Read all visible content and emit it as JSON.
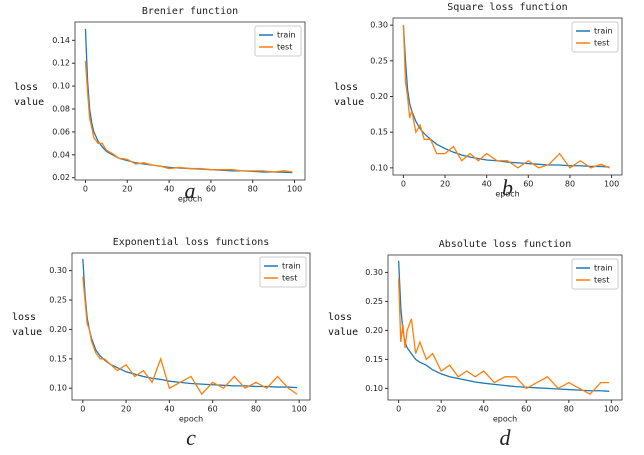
{
  "chart_data": [
    {
      "type": "line",
      "title": "Brenier function",
      "caption": "a",
      "xlabel": "epoch",
      "ylabel": "loss value",
      "x": [
        0,
        1,
        2,
        3,
        4,
        6,
        8,
        10,
        13,
        16,
        20,
        24,
        28,
        32,
        36,
        40,
        45,
        50,
        55,
        60,
        65,
        70,
        75,
        80,
        85,
        90,
        95,
        99
      ],
      "series": [
        {
          "name": "train",
          "color": "#1f77b4",
          "values": [
            0.15,
            0.105,
            0.08,
            0.068,
            0.06,
            0.052,
            0.047,
            0.043,
            0.04,
            0.037,
            0.035,
            0.033,
            0.032,
            0.031,
            0.03,
            0.029,
            0.0285,
            0.028,
            0.0275,
            0.027,
            0.0265,
            0.026,
            0.026,
            0.0255,
            0.025,
            0.025,
            0.0248,
            0.0245
          ]
        },
        {
          "name": "test",
          "color": "#ff7f0e",
          "values": [
            0.122,
            0.095,
            0.072,
            0.064,
            0.055,
            0.05,
            0.05,
            0.044,
            0.041,
            0.037,
            0.036,
            0.032,
            0.033,
            0.031,
            0.03,
            0.028,
            0.029,
            0.028,
            0.028,
            0.027,
            0.027,
            0.027,
            0.026,
            0.026,
            0.026,
            0.025,
            0.026,
            0.025
          ]
        }
      ],
      "xlim": [
        -5,
        105
      ],
      "xticks": [
        0,
        20,
        40,
        60,
        80,
        100
      ],
      "ylim": [
        0.018,
        0.156
      ],
      "yticks": [
        0.02,
        0.04,
        0.06,
        0.08,
        {
          "value": 0.1,
          "label": "0.10"
        },
        0.12,
        0.14
      ],
      "legend": "upper right"
    },
    {
      "type": "line",
      "title": "Square loss function",
      "caption": "b",
      "xlabel": "epoch",
      "ylabel": "loss value",
      "x": [
        0,
        1,
        2,
        3,
        4,
        6,
        8,
        10,
        13,
        16,
        20,
        24,
        28,
        32,
        36,
        40,
        45,
        50,
        55,
        60,
        65,
        70,
        75,
        80,
        85,
        90,
        95,
        99
      ],
      "series": [
        {
          "name": "train",
          "color": "#1f77b4",
          "values": [
            0.3,
            0.25,
            0.21,
            0.19,
            0.18,
            0.165,
            0.155,
            0.148,
            0.14,
            0.133,
            0.127,
            0.122,
            0.118,
            0.115,
            0.113,
            0.111,
            0.11,
            0.108,
            0.107,
            0.106,
            0.105,
            0.104,
            0.104,
            0.103,
            0.103,
            0.102,
            0.102,
            0.101
          ]
        },
        {
          "name": "test",
          "color": "#ff7f0e",
          "values": [
            0.3,
            0.22,
            0.2,
            0.17,
            0.18,
            0.15,
            0.16,
            0.14,
            0.14,
            0.12,
            0.12,
            0.13,
            0.11,
            0.12,
            0.11,
            0.12,
            0.11,
            0.11,
            0.1,
            0.11,
            0.1,
            0.105,
            0.12,
            0.1,
            0.11,
            0.1,
            0.105,
            0.1
          ]
        }
      ],
      "xlim": [
        -5,
        105
      ],
      "xticks": [
        0,
        20,
        40,
        60,
        80,
        100
      ],
      "ylim": [
        0.09,
        0.31
      ],
      "yticks": [
        {
          "value": 0.1,
          "label": "0.10"
        },
        0.15,
        {
          "value": 0.2,
          "label": "0.20"
        },
        0.25,
        {
          "value": 0.3,
          "label": "0.30"
        }
      ],
      "legend": "upper right"
    },
    {
      "type": "line",
      "title": "Exponential loss functions",
      "caption": "c",
      "xlabel": "epoch",
      "ylabel": "loss value",
      "x": [
        0,
        1,
        2,
        3,
        4,
        6,
        8,
        10,
        13,
        16,
        20,
        24,
        28,
        32,
        36,
        40,
        45,
        50,
        55,
        60,
        65,
        70,
        75,
        80,
        85,
        90,
        95,
        99
      ],
      "series": [
        {
          "name": "train",
          "color": "#1f77b4",
          "values": [
            0.32,
            0.26,
            0.22,
            0.2,
            0.185,
            0.165,
            0.155,
            0.148,
            0.14,
            0.135,
            0.128,
            0.124,
            0.12,
            0.117,
            0.115,
            0.112,
            0.11,
            0.108,
            0.107,
            0.106,
            0.105,
            0.104,
            0.104,
            0.103,
            0.103,
            0.102,
            0.102,
            0.101
          ]
        },
        {
          "name": "test",
          "color": "#ff7f0e",
          "values": [
            0.29,
            0.25,
            0.21,
            0.2,
            0.18,
            0.16,
            0.15,
            0.15,
            0.14,
            0.13,
            0.14,
            0.12,
            0.13,
            0.11,
            0.15,
            0.1,
            0.11,
            0.12,
            0.09,
            0.11,
            0.1,
            0.12,
            0.1,
            0.11,
            0.1,
            0.12,
            0.1,
            0.09
          ]
        }
      ],
      "xlim": [
        -5,
        105
      ],
      "xticks": [
        0,
        20,
        40,
        60,
        80,
        100
      ],
      "ylim": [
        0.08,
        0.33
      ],
      "yticks": [
        {
          "value": 0.1,
          "label": "0.10"
        },
        0.15,
        {
          "value": 0.2,
          "label": "0.20"
        },
        0.25,
        {
          "value": 0.3,
          "label": "0.30"
        }
      ],
      "legend": "upper right"
    },
    {
      "type": "line",
      "title": "Absolute loss function",
      "caption": "d",
      "xlabel": "epoch",
      "ylabel": "loss value",
      "x": [
        0,
        1,
        2,
        3,
        4,
        6,
        8,
        10,
        13,
        16,
        20,
        24,
        28,
        32,
        36,
        40,
        45,
        50,
        55,
        60,
        65,
        70,
        75,
        80,
        85,
        90,
        95,
        99
      ],
      "series": [
        {
          "name": "train",
          "color": "#1f77b4",
          "values": [
            0.32,
            0.24,
            0.2,
            0.18,
            0.17,
            0.16,
            0.15,
            0.145,
            0.14,
            0.132,
            0.125,
            0.12,
            0.117,
            0.114,
            0.111,
            0.109,
            0.107,
            0.105,
            0.103,
            0.102,
            0.101,
            0.1,
            0.099,
            0.098,
            0.097,
            0.096,
            0.096,
            0.095
          ]
        },
        {
          "name": "test",
          "color": "#ff7f0e",
          "values": [
            0.29,
            0.18,
            0.21,
            0.17,
            0.2,
            0.22,
            0.16,
            0.18,
            0.15,
            0.16,
            0.13,
            0.14,
            0.12,
            0.13,
            0.12,
            0.13,
            0.11,
            0.12,
            0.12,
            0.1,
            0.11,
            0.12,
            0.1,
            0.11,
            0.1,
            0.09,
            0.11,
            0.11
          ]
        }
      ],
      "xlim": [
        -5,
        105
      ],
      "xticks": [
        0,
        20,
        40,
        60,
        80,
        100
      ],
      "ylim": [
        0.08,
        0.33
      ],
      "yticks": [
        {
          "value": 0.1,
          "label": "0.10"
        },
        0.15,
        {
          "value": 0.2,
          "label": "0.20"
        },
        0.25,
        {
          "value": 0.3,
          "label": "0.30"
        }
      ],
      "legend": "upper right"
    }
  ]
}
